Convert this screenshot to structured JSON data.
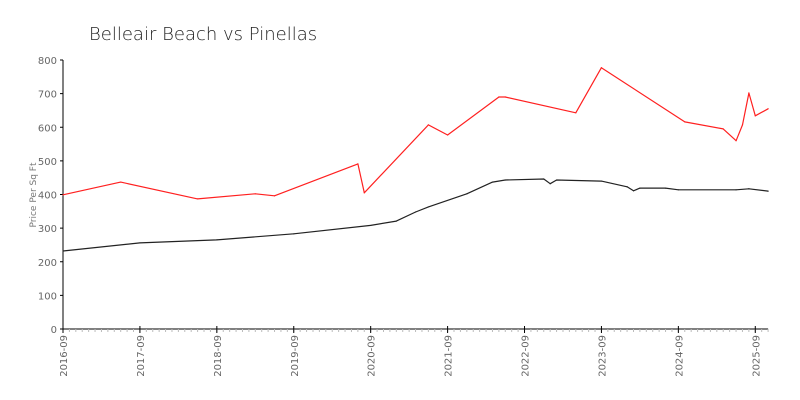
{
  "chart_data": {
    "type": "line",
    "title": "Belleair Beach vs Pinellas",
    "xlabel": "",
    "ylabel": "Price Per Sq Ft",
    "ylim": [
      0,
      800
    ],
    "xlim": [
      "2016-09",
      "2025-11"
    ],
    "yticks": [
      "0",
      "100",
      "200",
      "300",
      "400",
      "500",
      "600",
      "700",
      "800"
    ],
    "xticks": [
      "2016-09",
      "2017-09",
      "2018-09",
      "2019-09",
      "2020-09",
      "2021-09",
      "2022-09",
      "2023-09",
      "2024-09",
      "2025-09"
    ],
    "grid": false,
    "legend": "none",
    "series": [
      {
        "color": "#ff2020",
        "points": [
          [
            "2016-09",
            399
          ],
          [
            "2017-06",
            437
          ],
          [
            "2018-06",
            387
          ],
          [
            "2019-03",
            402
          ],
          [
            "2019-06",
            396
          ],
          [
            "2020-07",
            491
          ],
          [
            "2020-08",
            405
          ],
          [
            "2021-06",
            607
          ],
          [
            "2021-09",
            577
          ],
          [
            "2022-05",
            690
          ],
          [
            "2022-06",
            690
          ],
          [
            "2023-05",
            643
          ],
          [
            "2023-09",
            777
          ],
          [
            "2024-10",
            616
          ],
          [
            "2025-04",
            595
          ],
          [
            "2025-06",
            560
          ],
          [
            "2025-07",
            607
          ],
          [
            "2025-08",
            702
          ],
          [
            "2025-09",
            634
          ],
          [
            "2025-11",
            655
          ]
        ]
      },
      {
        "color": "#222222",
        "points": [
          [
            "2016-09",
            232
          ],
          [
            "2017-09",
            256
          ],
          [
            "2018-09",
            265
          ],
          [
            "2019-09",
            283
          ],
          [
            "2020-09",
            308
          ],
          [
            "2021-01",
            321
          ],
          [
            "2021-04",
            348
          ],
          [
            "2021-06",
            363
          ],
          [
            "2021-12",
            402
          ],
          [
            "2022-04",
            437
          ],
          [
            "2022-06",
            443
          ],
          [
            "2022-12",
            446
          ],
          [
            "2023-01",
            432
          ],
          [
            "2023-02",
            443
          ],
          [
            "2023-09",
            440
          ],
          [
            "2024-01",
            423
          ],
          [
            "2024-02",
            411
          ],
          [
            "2024-03",
            419
          ],
          [
            "2024-07",
            419
          ],
          [
            "2024-09",
            414
          ],
          [
            "2025-06",
            414
          ],
          [
            "2025-08",
            417
          ],
          [
            "2025-11",
            410
          ]
        ]
      }
    ]
  }
}
